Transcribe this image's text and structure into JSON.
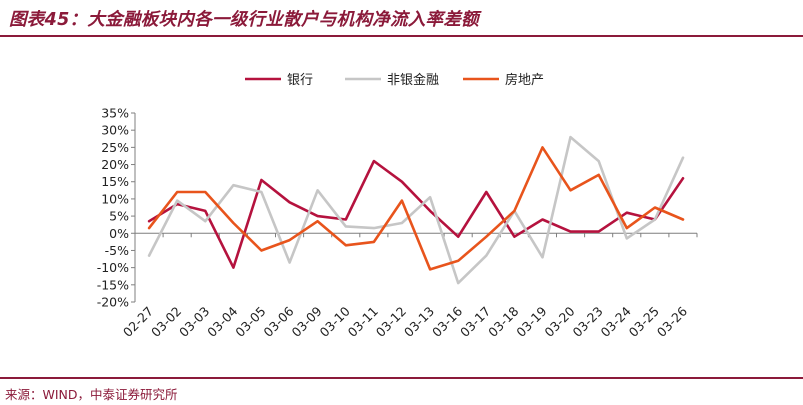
{
  "title": "图表45：大金融板块内各一级行业散户与机构净流入率差额",
  "source": "来源：WIND，中泰证券研究所",
  "chart_data": {
    "type": "line",
    "categories": [
      "02-27",
      "03-02",
      "03-03",
      "03-04",
      "03-05",
      "03-06",
      "03-09",
      "03-10",
      "03-11",
      "03-12",
      "03-13",
      "03-16",
      "03-17",
      "03-18",
      "03-19",
      "03-20",
      "03-23",
      "03-24",
      "03-25",
      "03-26"
    ],
    "y_ticks": [
      "35%",
      "30%",
      "25%",
      "20%",
      "15%",
      "10%",
      "5%",
      "0%",
      "-5%",
      "-10%",
      "-15%",
      "-20%"
    ],
    "ylim": [
      -20,
      35
    ],
    "legend_position": "top",
    "series": [
      {
        "name": "银行",
        "color": "#b5123e",
        "values": [
          3.5,
          8.5,
          6.5,
          -10,
          15.5,
          9,
          5,
          4,
          21,
          15,
          6.5,
          -1,
          12,
          -1,
          4,
          0.5,
          0.5,
          6,
          4,
          16
        ]
      },
      {
        "name": "非银金融",
        "color": "#c6c6c6",
        "values": [
          -6.5,
          9.5,
          3.5,
          14,
          12,
          -8.5,
          12.5,
          2,
          1.5,
          3,
          10.5,
          -14.5,
          -6.5,
          6.5,
          -7,
          28,
          21,
          -1.5,
          4,
          22
        ]
      },
      {
        "name": "房地产",
        "color": "#e8541c",
        "values": [
          1.5,
          12,
          12,
          3,
          -5,
          -2,
          3.5,
          -3.5,
          -2.5,
          9.5,
          -10.5,
          -8,
          -1,
          6.5,
          25,
          12.5,
          17,
          1.5,
          7.5,
          4
        ]
      }
    ]
  }
}
